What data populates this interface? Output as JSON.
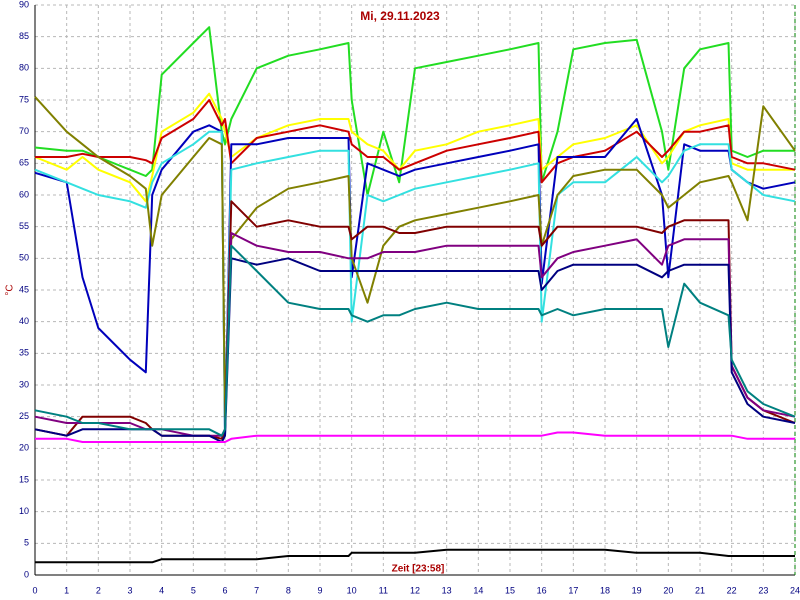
{
  "chart_data": {
    "type": "line",
    "title": "Mi, 29.11.2023",
    "ylabel": "°C",
    "xlabel": "Zeit [23:58]",
    "grid": true,
    "xlim": [
      0,
      24
    ],
    "ylim": [
      0,
      90
    ],
    "xticks": [
      0,
      1,
      2,
      3,
      4,
      5,
      6,
      7,
      8,
      9,
      10,
      11,
      12,
      13,
      14,
      15,
      16,
      17,
      18,
      19,
      20,
      21,
      22,
      23,
      24
    ],
    "yticks": [
      0,
      5,
      10,
      15,
      20,
      25,
      30,
      35,
      40,
      45,
      50,
      55,
      60,
      65,
      70,
      75,
      80,
      85,
      90
    ],
    "x": [
      0,
      1,
      1.5,
      2,
      3,
      3.5,
      3.7,
      4,
      5,
      5.5,
      5.9,
      6,
      6.2,
      7,
      8,
      9,
      9.9,
      10,
      10.5,
      11,
      11.5,
      12,
      13,
      14,
      15,
      15.9,
      16,
      16.5,
      17,
      18,
      19,
      19.8,
      20,
      20.5,
      21,
      21.9,
      22,
      22.5,
      23,
      24
    ],
    "series": [
      {
        "color": "#22dd22",
        "values": [
          67.5,
          67,
          67,
          66,
          64,
          63,
          64,
          79,
          84,
          86.5,
          70,
          68,
          72,
          80,
          82,
          83,
          84,
          75,
          60,
          70,
          62,
          80,
          81,
          82,
          83,
          84,
          62,
          70,
          83,
          84,
          84.5,
          70,
          64,
          80,
          83,
          84,
          67,
          66,
          67,
          67
        ]
      },
      {
        "color": "#ffff00",
        "values": [
          66,
          64,
          66,
          64,
          62,
          59,
          63,
          70,
          73,
          76,
          72,
          70,
          66,
          69,
          71,
          72,
          72,
          70,
          68,
          67,
          64,
          67,
          68,
          70,
          71,
          72,
          64,
          66,
          68,
          69,
          71,
          65,
          66,
          70,
          71,
          72,
          65,
          64,
          64,
          64
        ]
      },
      {
        "color": "#cc0000",
        "values": [
          66,
          66,
          66.5,
          66,
          66,
          65.5,
          65,
          69,
          72,
          75,
          71,
          72,
          65,
          69,
          70,
          71,
          70,
          68,
          66,
          66,
          64,
          65,
          67,
          68,
          69,
          70,
          62,
          65,
          66,
          67,
          70,
          66,
          67,
          70,
          70,
          71,
          66,
          65,
          65,
          64
        ]
      },
      {
        "color": "#0000bb",
        "values": [
          63.5,
          62,
          47,
          39,
          34,
          32,
          60,
          64,
          70,
          71,
          70,
          22,
          68,
          68,
          69,
          69,
          69,
          47,
          65,
          64,
          63,
          64,
          65,
          66,
          67,
          68,
          46,
          66,
          66,
          66,
          72,
          60,
          47,
          68,
          67,
          67,
          64,
          62,
          61,
          62
        ]
      },
      {
        "color": "#33e0e0",
        "values": [
          64,
          62,
          61,
          60,
          59,
          58,
          62,
          65,
          68,
          70,
          70,
          22,
          64,
          65,
          66,
          67,
          67,
          40,
          60,
          59,
          60,
          61,
          62,
          63,
          64,
          65,
          40,
          60,
          62,
          62,
          66,
          62,
          63,
          67,
          68,
          68,
          64,
          62,
          60,
          59
        ]
      },
      {
        "color": "#808000",
        "values": [
          75.5,
          70,
          68,
          66,
          63,
          61,
          52,
          60,
          66,
          69,
          68,
          25,
          53,
          58,
          61,
          62,
          63,
          50,
          43,
          52,
          55,
          56,
          57,
          58,
          59,
          60,
          52,
          60,
          63,
          64,
          64,
          60,
          58,
          60,
          62,
          63,
          62,
          56,
          74,
          67
        ]
      },
      {
        "color": "#800000",
        "values": [
          23,
          22,
          25,
          25,
          25,
          24,
          23,
          22,
          22,
          22,
          21.5,
          23,
          59,
          55,
          56,
          55,
          55,
          53,
          55,
          55,
          54,
          54,
          55,
          55,
          55,
          55,
          52,
          55,
          55,
          55,
          55,
          54,
          55,
          56,
          56,
          56,
          33,
          28,
          26,
          24
        ]
      },
      {
        "color": "#800080",
        "values": [
          25,
          24,
          24,
          24,
          24,
          23,
          23,
          23,
          22,
          22,
          22,
          23,
          54,
          52,
          51,
          51,
          50,
          50,
          50,
          51,
          51,
          51,
          52,
          52,
          52,
          52,
          47,
          50,
          51,
          52,
          53,
          49,
          52,
          53,
          53,
          53,
          33,
          28,
          26,
          25
        ]
      },
      {
        "color": "#000080",
        "values": [
          23,
          22,
          23,
          23,
          23,
          23,
          23,
          22,
          22,
          22,
          21,
          22,
          50,
          49,
          50,
          48,
          48,
          48,
          48,
          48,
          48,
          48,
          48,
          48,
          48,
          48,
          45,
          48,
          49,
          49,
          49,
          47,
          48,
          49,
          49,
          49,
          32,
          27,
          25,
          24
        ]
      },
      {
        "color": "#008080",
        "values": [
          26,
          25,
          24,
          24,
          23,
          23,
          23,
          23,
          23,
          23,
          22,
          23,
          52,
          48,
          43,
          42,
          42,
          41,
          40,
          41,
          41,
          42,
          43,
          42,
          42,
          42,
          41,
          42,
          41,
          42,
          42,
          42,
          36,
          46,
          43,
          41,
          34,
          29,
          27,
          25
        ]
      },
      {
        "color": "#ff00ff",
        "values": [
          21.5,
          21.5,
          21,
          21,
          21,
          21,
          21,
          21,
          21,
          21,
          21,
          21,
          21.5,
          22,
          22,
          22,
          22,
          22,
          22,
          22,
          22,
          22,
          22,
          22,
          22,
          22,
          22,
          22.5,
          22.5,
          22,
          22,
          22,
          22,
          22,
          22,
          22,
          22,
          21.5,
          21.5,
          21.5
        ]
      },
      {
        "color": "#000000",
        "values": [
          2,
          2,
          2,
          2,
          2,
          2,
          2,
          2.5,
          2.5,
          2.5,
          2.5,
          2.5,
          2.5,
          2.5,
          3,
          3,
          3,
          3.5,
          3.5,
          3.5,
          3.5,
          3.5,
          4,
          4,
          4,
          4,
          4,
          4,
          4,
          4,
          3.5,
          3.5,
          3.5,
          3.5,
          3.5,
          3,
          3,
          3,
          3,
          3
        ]
      }
    ]
  }
}
